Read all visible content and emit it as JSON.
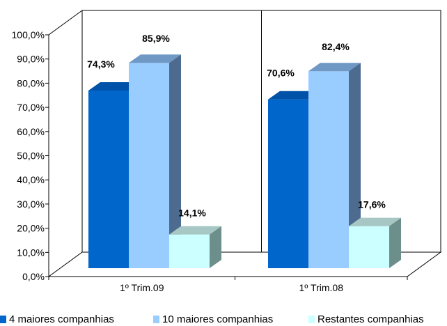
{
  "chart_data": {
    "type": "bar",
    "categories": [
      "1º Trim.09",
      "1º Trim.08"
    ],
    "series": [
      {
        "name": "4 maiores companhias",
        "values": [
          74.3,
          70.6
        ],
        "labels": [
          "74,3%",
          "70,6%"
        ],
        "color": "#0066CC",
        "side": "#004C99",
        "top": "#0052A8"
      },
      {
        "name": "10 maiores companhias",
        "values": [
          85.9,
          82.4
        ],
        "labels": [
          "85,9%",
          "82,4%"
        ],
        "color": "#99CCFF",
        "side": "#4D6B8F",
        "top": "#6F98C4"
      },
      {
        "name": "Restantes companhias",
        "values": [
          14.1,
          17.6
        ],
        "labels": [
          "14,1%",
          "17,6%"
        ],
        "color": "#CCFFFF",
        "side": "#6C8F8C",
        "top": "#A6C7C4"
      }
    ],
    "ylim": [
      0,
      100
    ],
    "yticks": [
      "0,0%",
      "10,0%",
      "20,0%",
      "30,0%",
      "40,0%",
      "50,0%",
      "60,0%",
      "70,0%",
      "80,0%",
      "90,0%",
      "100,0%"
    ],
    "legend_position": "bottom",
    "grid": false
  }
}
